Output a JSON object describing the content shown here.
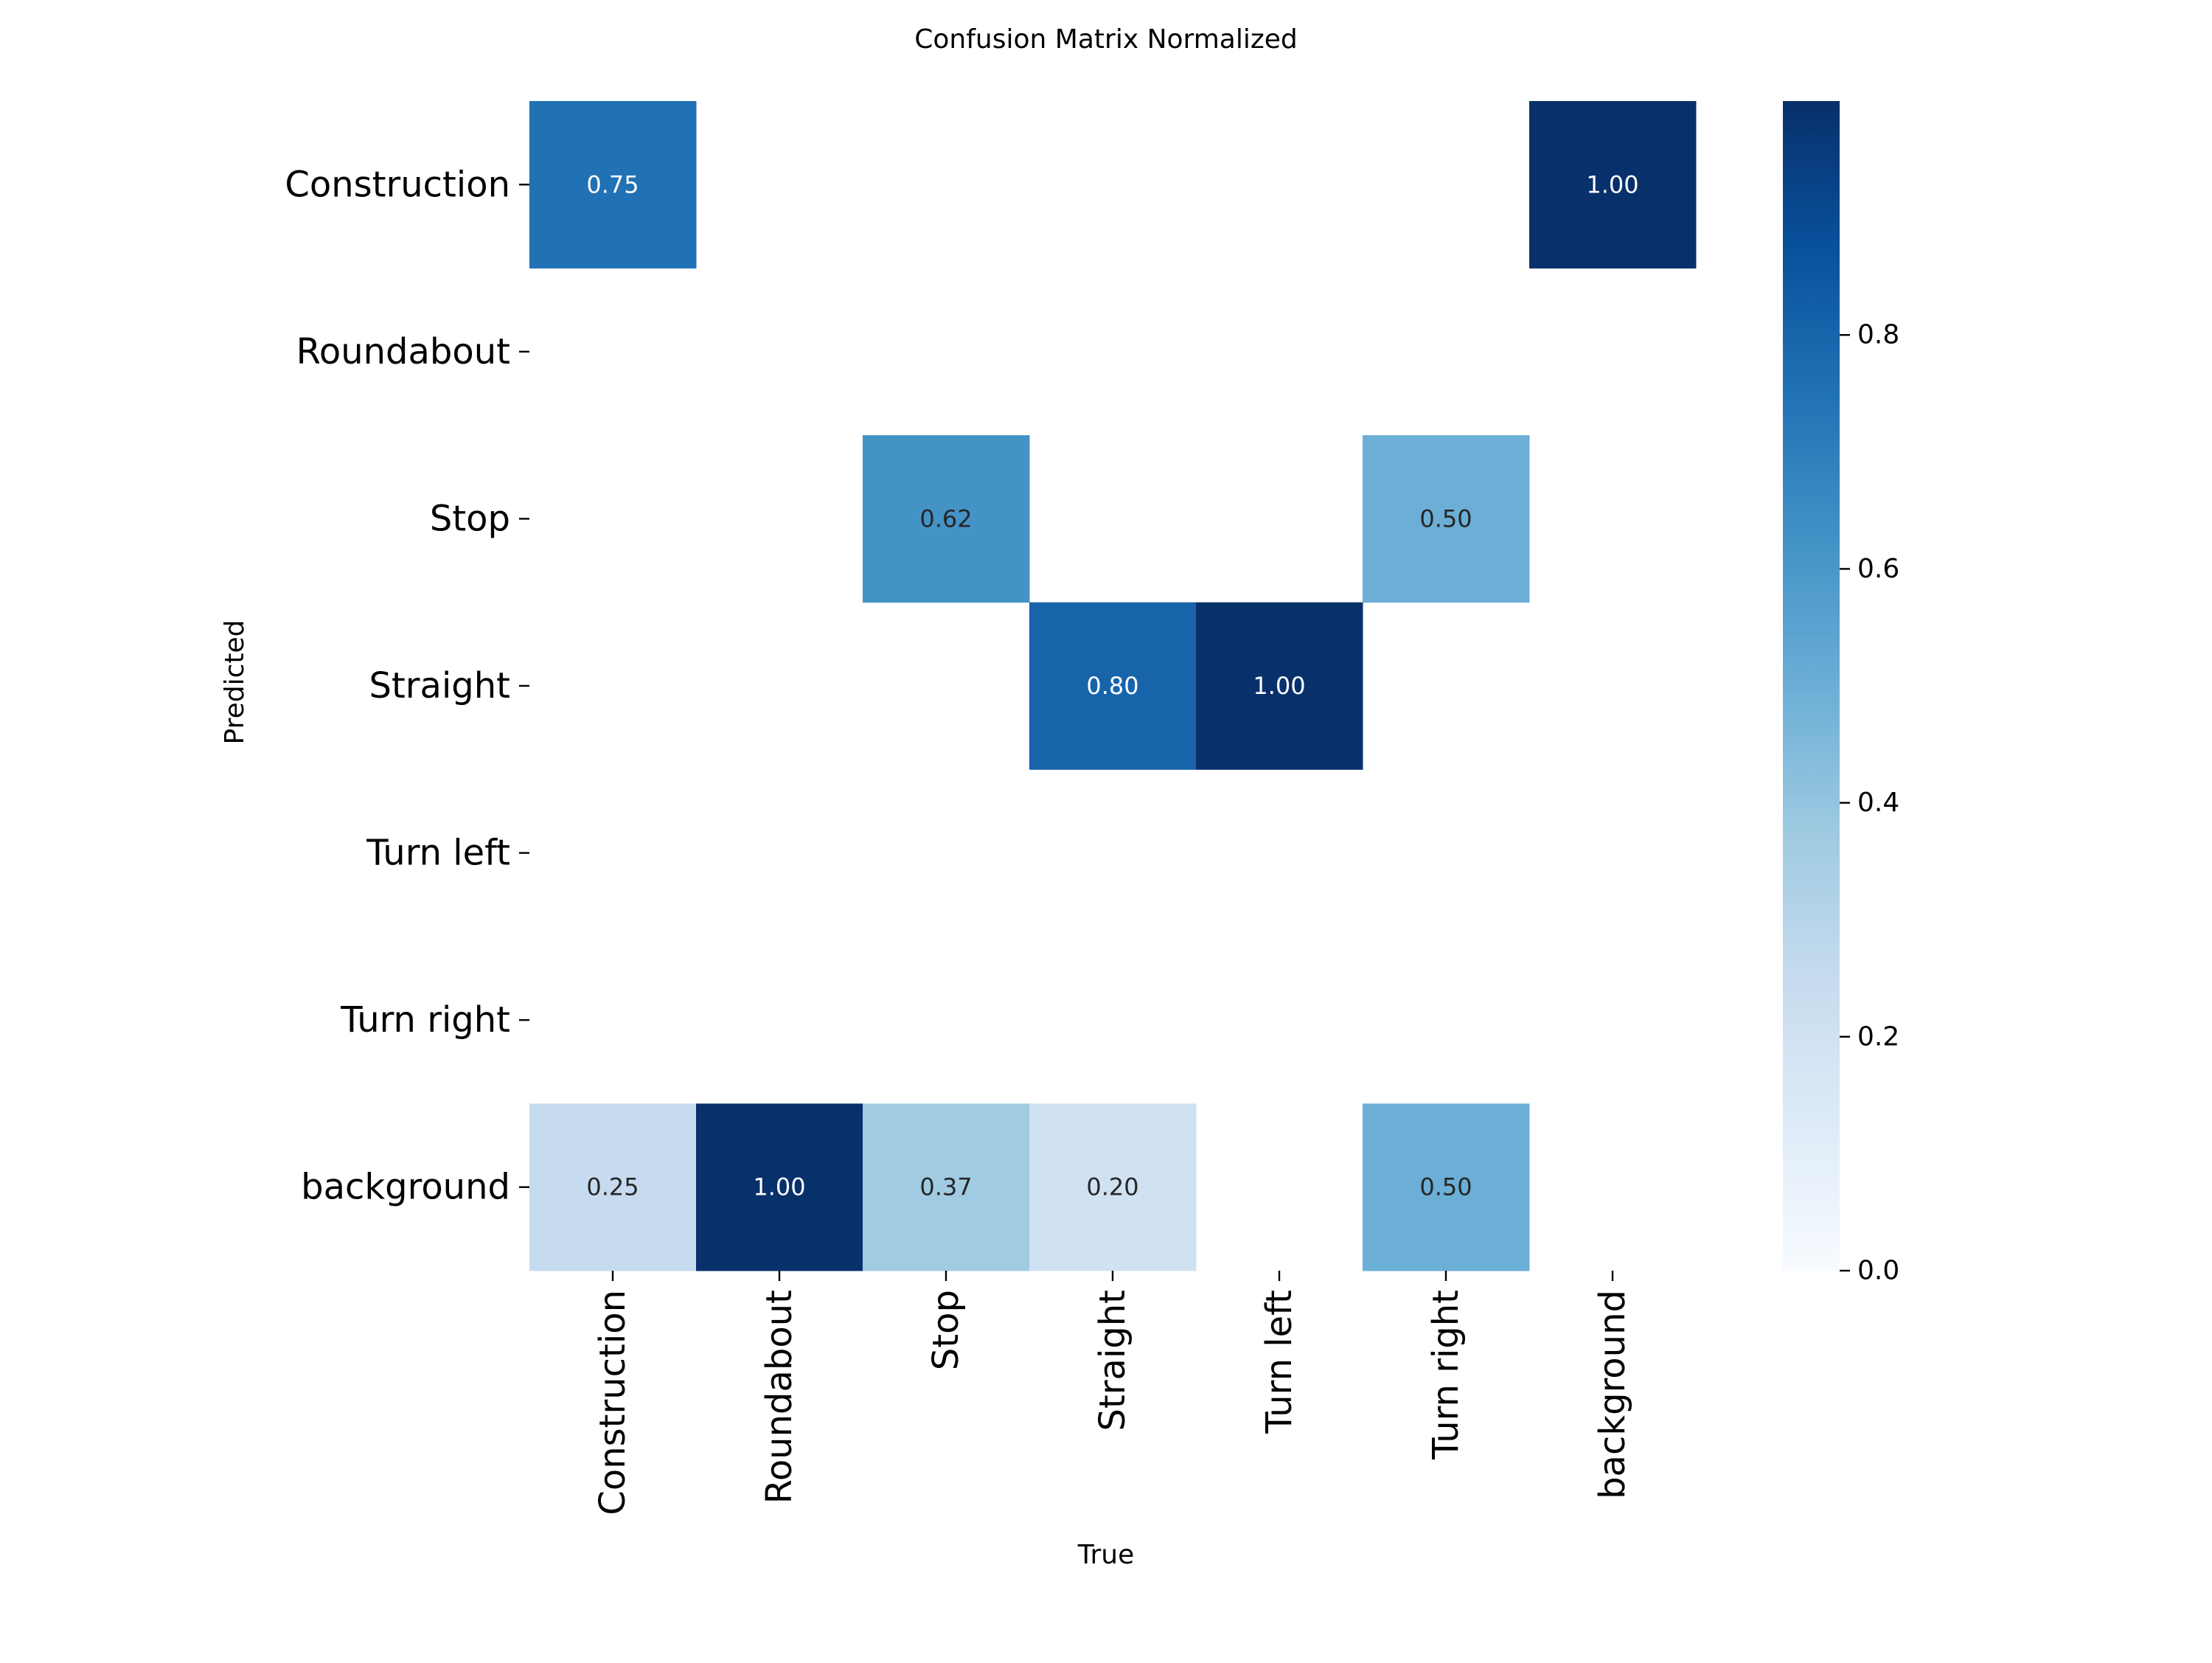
{
  "chart_data": {
    "type": "heatmap",
    "title": "Confusion Matrix Normalized",
    "xlabel": "True",
    "ylabel": "Predicted",
    "x_categories": [
      "Construction",
      "Roundabout",
      "Stop",
      "Straight",
      "Turn left",
      "Turn right",
      "background"
    ],
    "y_categories": [
      "Construction",
      "Roundabout",
      "Stop",
      "Straight",
      "Turn left",
      "Turn right",
      "background"
    ],
    "values": [
      [
        0.75,
        null,
        null,
        null,
        null,
        null,
        1.0
      ],
      [
        null,
        null,
        null,
        null,
        null,
        null,
        null
      ],
      [
        null,
        null,
        0.62,
        null,
        null,
        0.5,
        null
      ],
      [
        null,
        null,
        null,
        0.8,
        1.0,
        null,
        null
      ],
      [
        null,
        null,
        null,
        null,
        null,
        null,
        null
      ],
      [
        null,
        null,
        null,
        null,
        null,
        null,
        null
      ],
      [
        0.25,
        1.0,
        0.37,
        0.2,
        null,
        0.5,
        null
      ]
    ],
    "colormap": "Blues",
    "colorbar": {
      "range": [
        0.0,
        1.0
      ],
      "ticks": [
        0.0,
        0.2,
        0.4,
        0.6,
        0.8
      ],
      "tick_labels": [
        "0.0",
        "0.2",
        "0.4",
        "0.6",
        "0.8"
      ]
    },
    "grid": false
  }
}
